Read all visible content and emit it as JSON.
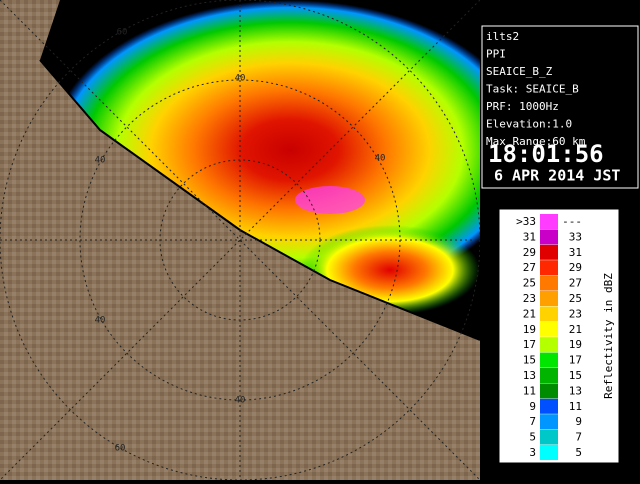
{
  "info": {
    "lines": [
      "ilts2",
      "PPI",
      "SEAICE_B_Z",
      "Task: SEAICE_B",
      "PRF: 1000Hz",
      "Elevation:1.0",
      "Max Range:60 km"
    ],
    "time": "18:01:56",
    "date": "6 APR 2014 JST"
  },
  "legend": {
    "title": "Reflectivity in dBZ",
    "rows": [
      {
        "low": ">33",
        "high": "---",
        "color": "#ff3cff"
      },
      {
        "low": "31",
        "high": "33",
        "color": "#c800c8"
      },
      {
        "low": "29",
        "high": "31",
        "color": "#e00000"
      },
      {
        "low": "27",
        "high": "29",
        "color": "#ff2800"
      },
      {
        "low": "25",
        "high": "27",
        "color": "#ff7800"
      },
      {
        "low": "23",
        "high": "25",
        "color": "#ffa000"
      },
      {
        "low": "21",
        "high": "23",
        "color": "#ffd200"
      },
      {
        "low": "19",
        "high": "21",
        "color": "#ffff00"
      },
      {
        "low": "17",
        "high": "19",
        "color": "#b4ff00"
      },
      {
        "low": "15",
        "high": "17",
        "color": "#00e600"
      },
      {
        "low": "13",
        "high": "15",
        "color": "#00b400"
      },
      {
        "low": "11",
        "high": "13",
        "color": "#008c00"
      },
      {
        "low": "9",
        "high": "11",
        "color": "#0050ff"
      },
      {
        "low": "7",
        "high": "9",
        "color": "#0096ff"
      },
      {
        "low": "5",
        "high": "7",
        "color": "#00c8c8"
      },
      {
        "low": "3",
        "high": "5",
        "color": "#00ffff"
      }
    ]
  },
  "range_labels": [
    "60",
    "40",
    "40",
    "40",
    "40",
    "40",
    "60"
  ]
}
